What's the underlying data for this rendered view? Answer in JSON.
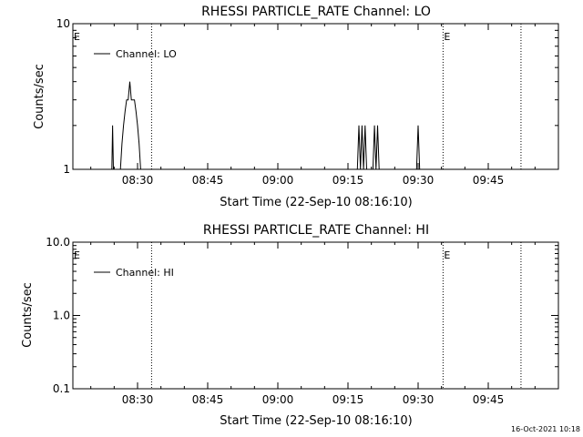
{
  "footer": {
    "timestamp": "16-Oct-2021 10:18"
  },
  "chart_data": [
    {
      "type": "line",
      "title": "RHESSI PARTICLE_RATE Channel: LO",
      "xlabel": "Start Time (22-Sep-10 08:16:10)",
      "ylabel": "Counts/sec",
      "y_scale": "log",
      "ylim": [
        1,
        10
      ],
      "y_ticks": [
        {
          "value": 1,
          "label": "1"
        },
        {
          "value": 10,
          "label": "10"
        }
      ],
      "xlim": [
        "08:16:10",
        "10:00:00"
      ],
      "x_ticks": [
        "08:30",
        "08:45",
        "09:00",
        "09:15",
        "09:30",
        "09:45"
      ],
      "legend": {
        "placement": "top-left",
        "entries": [
          "Channel: LO"
        ]
      },
      "series": [
        {
          "name": "Channel: LO",
          "x": [
            "08:24:20",
            "08:24:30",
            "08:24:40",
            "08:24:50",
            "08:25:00",
            "08:25:10",
            "08:25:20",
            "08:25:30",
            "08:26:20",
            "08:26:40",
            "08:27:00",
            "08:27:20",
            "08:27:40",
            "08:28:00",
            "08:28:20",
            "08:28:40",
            "08:29:00",
            "08:29:20",
            "08:29:40",
            "08:30:00",
            "08:30:20",
            "08:30:40",
            "08:31:00",
            "08:31:20",
            "08:31:40",
            "09:17:00",
            "09:17:20",
            "09:17:40",
            "09:18:00",
            "09:18:20",
            "09:18:40",
            "09:19:00",
            "09:19:20",
            "09:19:40",
            "09:20:00",
            "09:20:20",
            "09:20:40",
            "09:21:00",
            "09:21:20",
            "09:21:40",
            "09:22:00",
            "09:22:20",
            "09:22:40",
            "09:23:00",
            "09:23:20",
            "09:29:40",
            "09:30:00",
            "09:30:20"
          ],
          "values": [
            1,
            1,
            2,
            1,
            1,
            1,
            1,
            1,
            1,
            1.5,
            2,
            2.5,
            3,
            3,
            4,
            3,
            3,
            3,
            2.5,
            2,
            1.5,
            1,
            1,
            1,
            1,
            1,
            2,
            1,
            2,
            1,
            2,
            1,
            1,
            1,
            1,
            1,
            2,
            1,
            2,
            1,
            1,
            1,
            1,
            1,
            1,
            1,
            2,
            1
          ]
        }
      ],
      "markers": [
        {
          "time": "08:16:10",
          "label": "E"
        },
        {
          "time": "09:35:20",
          "label": "E"
        }
      ],
      "dotted_verticals": [
        "08:33:00",
        "09:35:20",
        "09:52:00"
      ]
    },
    {
      "type": "line",
      "title": "RHESSI PARTICLE_RATE Channel: HI",
      "xlabel": "Start Time (22-Sep-10 08:16:10)",
      "ylabel": "Counts/sec",
      "y_scale": "log",
      "ylim": [
        0.1,
        10
      ],
      "y_ticks": [
        {
          "value": 0.1,
          "label": "0.1"
        },
        {
          "value": 1,
          "label": "1.0"
        },
        {
          "value": 10,
          "label": "10.0"
        }
      ],
      "xlim": [
        "08:16:10",
        "10:00:00"
      ],
      "x_ticks": [
        "08:30",
        "08:45",
        "09:00",
        "09:15",
        "09:30",
        "09:45"
      ],
      "legend": {
        "placement": "top-left",
        "entries": [
          "Channel: HI"
        ]
      },
      "series": [
        {
          "name": "Channel: HI",
          "x": [],
          "values": []
        }
      ],
      "markers": [
        {
          "time": "08:16:10",
          "label": "E"
        },
        {
          "time": "09:35:20",
          "label": "E"
        }
      ],
      "dotted_verticals": [
        "08:33:00",
        "09:35:20",
        "09:52:00"
      ]
    }
  ]
}
